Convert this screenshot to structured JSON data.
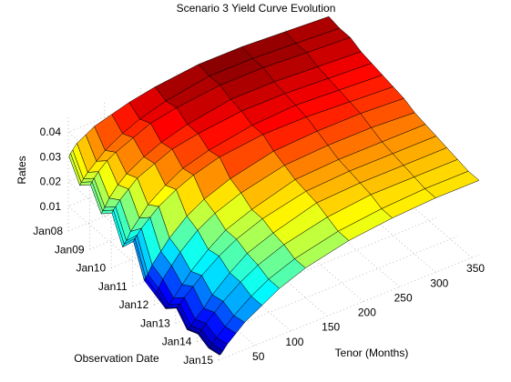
{
  "chart_data": {
    "type": "surface",
    "title": "Scenario 3 Yield Curve Evolution",
    "xlabel": "Tenor (Months)",
    "ylabel": "Observation Date",
    "zlabel": "Rates",
    "x_ticks": [
      50,
      100,
      150,
      200,
      250,
      300,
      350
    ],
    "y_ticks": [
      "Jan08",
      "Jan09",
      "Jan10",
      "Jan11",
      "Jan12",
      "Jan13",
      "Jan14",
      "Jan15"
    ],
    "z_ticks": [
      "0.01",
      "0.02",
      "0.03",
      "0.04"
    ],
    "xlim": [
      0,
      360
    ],
    "ylim": [
      2008,
      2015
    ],
    "zlim": [
      0,
      0.047
    ],
    "grid": true,
    "colormap": "jet",
    "tenors": [
      1,
      3,
      6,
      12,
      24,
      36,
      60,
      84,
      120,
      180,
      240,
      300,
      360
    ],
    "dates": [
      2008.0,
      2008.5,
      2009.0,
      2009.5,
      2010.0,
      2010.5,
      2011.0,
      2011.5,
      2012.0,
      2012.5,
      2013.0,
      2013.5,
      2014.0,
      2014.5,
      2015.0
    ],
    "rates": [
      [
        0.03,
        0.031,
        0.032,
        0.034,
        0.036,
        0.038,
        0.04,
        0.042,
        0.044,
        0.046,
        0.046,
        0.045,
        0.044
      ],
      [
        0.022,
        0.023,
        0.024,
        0.026,
        0.029,
        0.032,
        0.036,
        0.039,
        0.042,
        0.045,
        0.045,
        0.044,
        0.043
      ],
      [
        0.026,
        0.027,
        0.028,
        0.03,
        0.033,
        0.035,
        0.038,
        0.041,
        0.043,
        0.045,
        0.045,
        0.044,
        0.043
      ],
      [
        0.018,
        0.019,
        0.02,
        0.023,
        0.027,
        0.03,
        0.034,
        0.037,
        0.04,
        0.043,
        0.043,
        0.042,
        0.041
      ],
      [
        0.022,
        0.023,
        0.024,
        0.026,
        0.029,
        0.032,
        0.035,
        0.038,
        0.04,
        0.042,
        0.042,
        0.041,
        0.04
      ],
      [
        0.012,
        0.013,
        0.014,
        0.017,
        0.021,
        0.025,
        0.03,
        0.034,
        0.037,
        0.04,
        0.041,
        0.04,
        0.039
      ],
      [
        0.018,
        0.019,
        0.02,
        0.022,
        0.025,
        0.028,
        0.032,
        0.035,
        0.038,
        0.04,
        0.04,
        0.039,
        0.038
      ],
      [
        0.006,
        0.007,
        0.008,
        0.011,
        0.015,
        0.019,
        0.025,
        0.029,
        0.033,
        0.037,
        0.038,
        0.038,
        0.037
      ],
      [
        0.004,
        0.005,
        0.006,
        0.009,
        0.013,
        0.017,
        0.023,
        0.027,
        0.031,
        0.035,
        0.036,
        0.036,
        0.035
      ],
      [
        0.002,
        0.002,
        0.003,
        0.005,
        0.009,
        0.013,
        0.019,
        0.024,
        0.028,
        0.033,
        0.034,
        0.034,
        0.034
      ],
      [
        0.006,
        0.006,
        0.007,
        0.009,
        0.012,
        0.015,
        0.02,
        0.024,
        0.028,
        0.032,
        0.033,
        0.033,
        0.033
      ],
      [
        0.001,
        0.001,
        0.002,
        0.004,
        0.007,
        0.011,
        0.017,
        0.022,
        0.026,
        0.031,
        0.032,
        0.032,
        0.032
      ],
      [
        0.003,
        0.003,
        0.004,
        0.006,
        0.009,
        0.012,
        0.017,
        0.021,
        0.025,
        0.029,
        0.031,
        0.031,
        0.031
      ],
      [
        0.001,
        0.001,
        0.002,
        0.004,
        0.007,
        0.01,
        0.015,
        0.019,
        0.023,
        0.027,
        0.029,
        0.03,
        0.03
      ],
      [
        0.002,
        0.002,
        0.003,
        0.005,
        0.008,
        0.011,
        0.015,
        0.019,
        0.023,
        0.027,
        0.029,
        0.03,
        0.03
      ]
    ]
  }
}
